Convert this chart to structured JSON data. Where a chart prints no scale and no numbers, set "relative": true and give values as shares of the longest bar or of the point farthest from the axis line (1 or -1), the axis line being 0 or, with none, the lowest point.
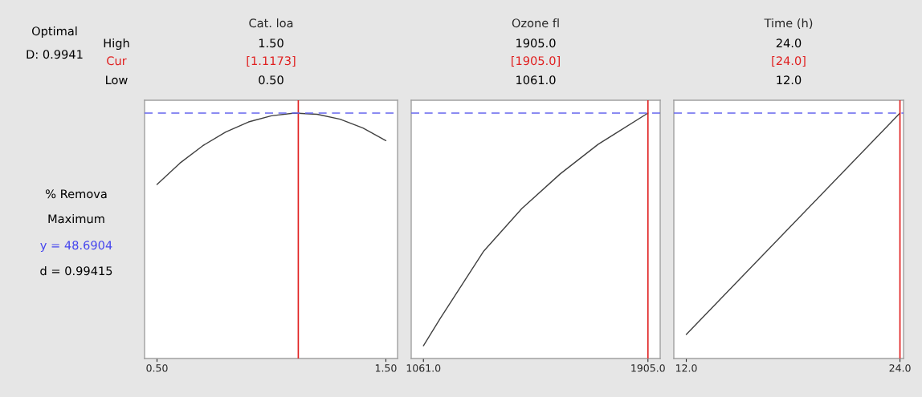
{
  "chart_data": [
    {
      "type": "line",
      "title": "Cat. loa",
      "relative": true,
      "tick_labels": "x",
      "xlim": [
        0.4456,
        1.551
      ],
      "xticks": [
        {
          "value": 0.5,
          "label": "0.50"
        },
        {
          "value": 1.5,
          "label": "1.50"
        }
      ],
      "annotations": [
        "1.50",
        "[1.1173]",
        "0.50"
      ],
      "series": [
        {
          "color": "#404040",
          "x": [
            0.5,
            0.6,
            0.7,
            0.8,
            0.9,
            1.0,
            1.1,
            1.2,
            1.3,
            1.4,
            1.5
          ],
          "values": [
            0.709,
            0.796,
            0.867,
            0.923,
            0.964,
            0.989,
            1.0,
            0.995,
            0.975,
            0.939,
            0.888
          ]
        }
      ],
      "ref_lines": [
        {
          "axis": "x",
          "value": 1.1173,
          "color": "#e02020"
        },
        {
          "axis": "y",
          "value": 1,
          "color": "#6666ee",
          "line_style": "dashed"
        }
      ]
    },
    {
      "type": "line",
      "title": "Ozone fl",
      "relative": true,
      "tick_labels": "x",
      "xlim": [
        1015,
        1951
      ],
      "xticks": [
        {
          "value": 1061,
          "label": "1061.0"
        },
        {
          "value": 1905,
          "label": "1905.0"
        }
      ],
      "annotations": [
        "1905.0",
        "[1905.0]",
        "1061.0"
      ],
      "series": [
        {
          "color": "#404040",
          "x": [
            1061,
            1124,
            1288,
            1431,
            1575,
            1718,
            1905
          ],
          "values": [
            0.052,
            0.163,
            0.438,
            0.611,
            0.752,
            0.873,
            1.0
          ]
        }
      ],
      "ref_lines": [
        {
          "axis": "x",
          "value": 1905,
          "color": "#e02020"
        },
        {
          "axis": "y",
          "value": 1,
          "color": "#6666ee",
          "line_style": "dashed"
        }
      ]
    },
    {
      "type": "line",
      "title": "Time (h)",
      "relative": true,
      "tick_labels": "x",
      "xlim": [
        11.3,
        24.2
      ],
      "xticks": [
        {
          "value": 12,
          "label": "12.0"
        },
        {
          "value": 24,
          "label": "24.0"
        }
      ],
      "annotations": [
        "24.0",
        "[24.0]",
        "12.0"
      ],
      "series": [
        {
          "color": "#404040",
          "x": [
            12,
            24
          ],
          "values": [
            0.098,
            1.0
          ]
        }
      ],
      "ref_lines": [
        {
          "axis": "x",
          "value": 24,
          "color": "#e02020"
        },
        {
          "axis": "y",
          "value": 1,
          "color": "#6666ee",
          "line_style": "dashed"
        }
      ]
    },
    {
      "type": "other",
      "annotations": [
        "Optimal",
        "D: 0.9941",
        "High",
        "Cur",
        "Low",
        "% Remova",
        "Maximum",
        "y = 48.6904",
        "d = 0.99415"
      ]
    }
  ]
}
